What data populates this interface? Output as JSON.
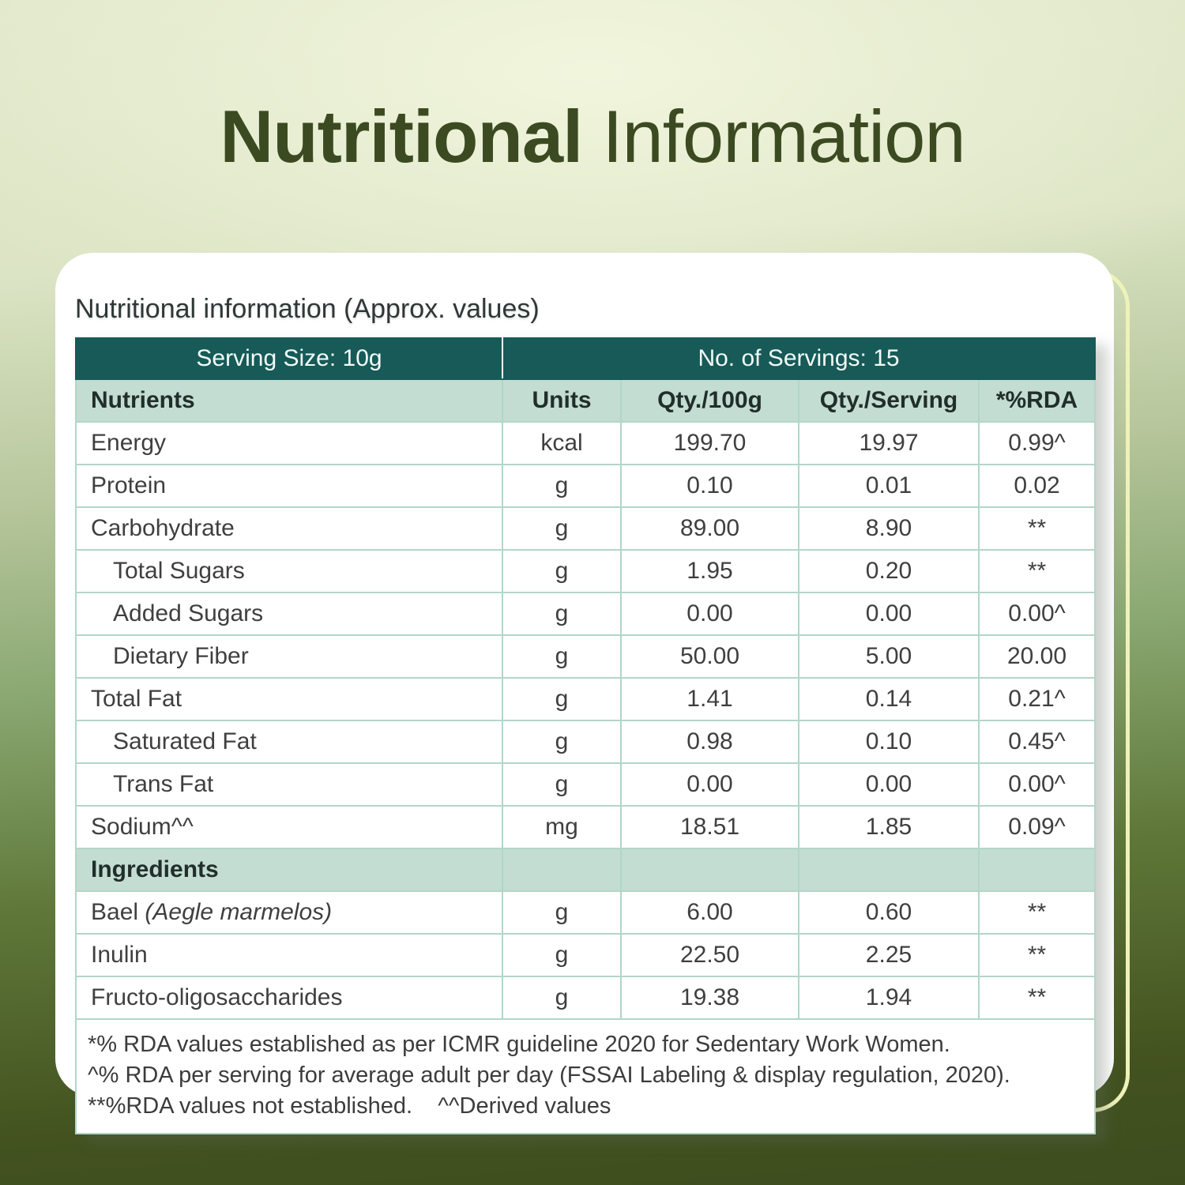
{
  "title": {
    "bold": "Nutritional",
    "regular": " Information"
  },
  "card": {
    "caption": "Nutritional information (Approx. values)",
    "table": {
      "serving_size": "Serving Size: 10g",
      "servings": "No. of Servings: 15",
      "columns": [
        "Nutrients",
        "Units",
        "Qty./100g",
        "Qty./Serving",
        "*%RDA"
      ],
      "rows": [
        {
          "name": "Energy",
          "indent": false,
          "unit": "kcal",
          "per100": "199.70",
          "perServing": "19.97",
          "rda": "0.99^"
        },
        {
          "name": "Protein",
          "indent": false,
          "unit": "g",
          "per100": "0.10",
          "perServing": "0.01",
          "rda": "0.02"
        },
        {
          "name": "Carbohydrate",
          "indent": false,
          "unit": "g",
          "per100": "89.00",
          "perServing": "8.90",
          "rda": "**"
        },
        {
          "name": "Total Sugars",
          "indent": true,
          "unit": "g",
          "per100": "1.95",
          "perServing": "0.20",
          "rda": "**"
        },
        {
          "name": "Added Sugars",
          "indent": true,
          "unit": "g",
          "per100": "0.00",
          "perServing": "0.00",
          "rda": "0.00^"
        },
        {
          "name": "Dietary Fiber",
          "indent": true,
          "unit": "g",
          "per100": "50.00",
          "perServing": "5.00",
          "rda": "20.00"
        },
        {
          "name": "Total Fat",
          "indent": false,
          "unit": "g",
          "per100": "1.41",
          "perServing": "0.14",
          "rda": "0.21^"
        },
        {
          "name": "Saturated Fat",
          "indent": true,
          "unit": "g",
          "per100": "0.98",
          "perServing": "0.10",
          "rda": "0.45^"
        },
        {
          "name": "Trans Fat",
          "indent": true,
          "unit": "g",
          "per100": "0.00",
          "perServing": "0.00",
          "rda": "0.00^"
        },
        {
          "name": "Sodium^^",
          "indent": false,
          "unit": "mg",
          "per100": "18.51",
          "perServing": "1.85",
          "rda": "0.09^"
        }
      ],
      "ingredients_label": "Ingredients",
      "ingredient_rows": [
        {
          "name": "Bael ",
          "latin": "(Aegle marmelos)",
          "unit": "g",
          "per100": "6.00",
          "perServing": "0.60",
          "rda": "**"
        },
        {
          "name": "Inulin",
          "latin": "",
          "unit": "g",
          "per100": "22.50",
          "perServing": "2.25",
          "rda": "**"
        },
        {
          "name": "Fructo-oligosaccharides",
          "latin": "",
          "unit": "g",
          "per100": "19.38",
          "perServing": "1.94",
          "rda": "**"
        }
      ],
      "footnotes": [
        "*% RDA values established as per ICMR guideline 2020 for Sedentary Work Women.",
        "^% RDA per serving for average adult per day (FSSAI Labeling & display regulation, 2020).",
        "**%RDA values not established.    ^^Derived values"
      ]
    }
  },
  "colors": {
    "title_text": "#3c4a22",
    "header_teal": "#175a58",
    "section_green": "#c3ddd2",
    "table_border": "#b2d6c8",
    "card_background": "#ffffff",
    "outline_yellow": "#eef2ba",
    "background_dark_olive": "#3d4d1e",
    "background_pale_green": "#e0e7c9"
  }
}
